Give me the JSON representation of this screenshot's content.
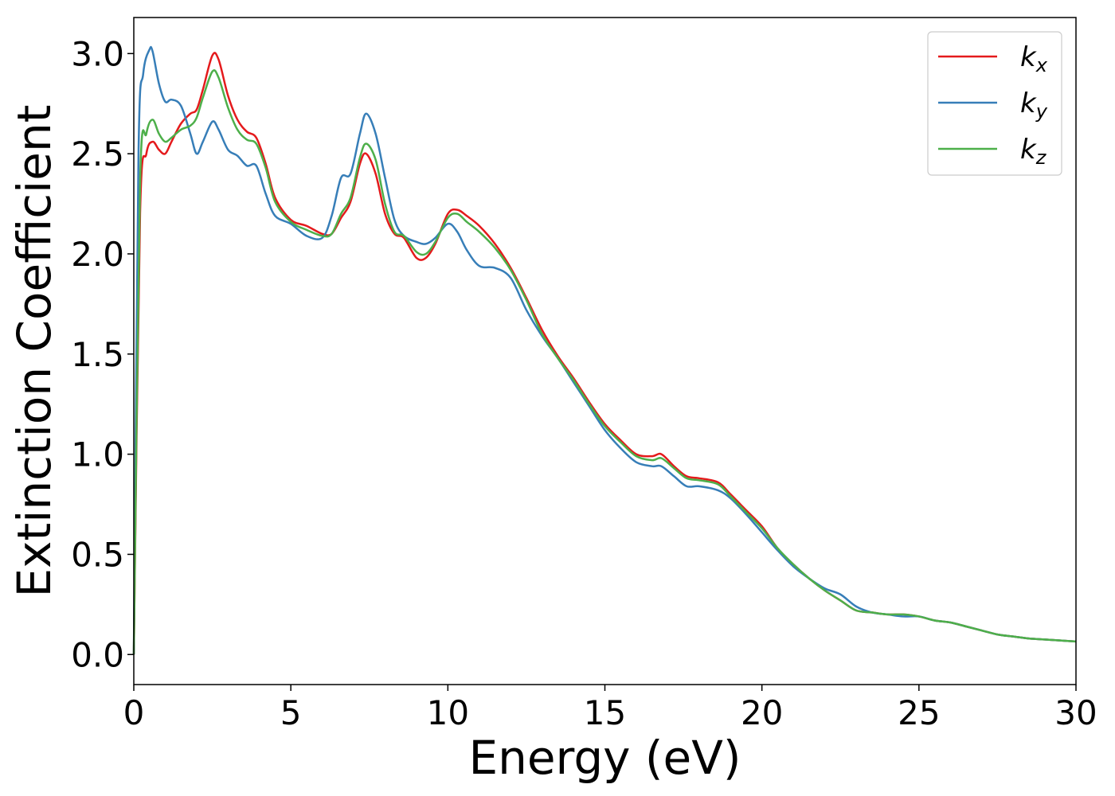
{
  "chart_data": {
    "type": "line",
    "title": "",
    "xlabel": "Energy (eV)",
    "ylabel": "Extinction Coefficient",
    "xlim": [
      0,
      30
    ],
    "ylim": [
      -0.15,
      3.18
    ],
    "xticks": [
      0,
      5,
      10,
      15,
      20,
      25,
      30
    ],
    "xtick_labels": [
      "0",
      "5",
      "10",
      "15",
      "20",
      "25",
      "30"
    ],
    "yticks": [
      0.0,
      0.5,
      1.0,
      1.5,
      2.0,
      2.5,
      3.0
    ],
    "ytick_labels": [
      "0.0",
      "0.5",
      "1.0",
      "1.5",
      "2.0",
      "2.5",
      "3.0"
    ],
    "grid": false,
    "legend_position": "top-right",
    "series": [
      {
        "name": "k",
        "subscript": "x",
        "color": "#e41a1c",
        "x": [
          0,
          0.2,
          0.4,
          0.6,
          0.8,
          1.0,
          1.2,
          1.5,
          1.8,
          2.0,
          2.2,
          2.5,
          2.7,
          3.0,
          3.3,
          3.6,
          3.9,
          4.2,
          4.5,
          5.0,
          5.5,
          6.0,
          6.3,
          6.6,
          6.9,
          7.2,
          7.4,
          7.7,
          8.0,
          8.3,
          8.6,
          9.0,
          9.3,
          9.6,
          10.0,
          10.3,
          10.6,
          11.0,
          11.5,
          12.0,
          12.5,
          13.0,
          13.5,
          14.0,
          14.5,
          15.0,
          15.5,
          16.0,
          16.5,
          16.8,
          17.2,
          17.6,
          18.0,
          18.6,
          19.0,
          19.5,
          20.0,
          20.5,
          21.0,
          21.5,
          22.0,
          22.5,
          23.0,
          23.5,
          24.0,
          24.5,
          25.0,
          25.5,
          26.0,
          26.5,
          27.0,
          27.5,
          28.0,
          28.5,
          29.0,
          29.5,
          30.0
        ],
        "y": [
          0.0,
          2.2,
          2.5,
          2.56,
          2.52,
          2.5,
          2.56,
          2.65,
          2.7,
          2.72,
          2.82,
          2.99,
          2.97,
          2.79,
          2.67,
          2.61,
          2.58,
          2.45,
          2.28,
          2.17,
          2.14,
          2.1,
          2.1,
          2.18,
          2.26,
          2.45,
          2.5,
          2.4,
          2.2,
          2.1,
          2.08,
          1.98,
          1.98,
          2.05,
          2.2,
          2.22,
          2.19,
          2.14,
          2.05,
          1.93,
          1.78,
          1.62,
          1.49,
          1.38,
          1.26,
          1.15,
          1.07,
          1.0,
          0.99,
          1.0,
          0.94,
          0.89,
          0.88,
          0.86,
          0.8,
          0.72,
          0.64,
          0.53,
          0.45,
          0.38,
          0.32,
          0.27,
          0.22,
          0.21,
          0.2,
          0.2,
          0.19,
          0.17,
          0.16,
          0.14,
          0.12,
          0.1,
          0.09,
          0.08,
          0.075,
          0.07,
          0.065
        ]
      },
      {
        "name": "k",
        "subscript": "y",
        "color": "#377eb8",
        "x": [
          0,
          0.15,
          0.3,
          0.5,
          0.6,
          0.8,
          1.0,
          1.2,
          1.5,
          1.8,
          2.0,
          2.2,
          2.5,
          2.7,
          3.0,
          3.3,
          3.6,
          3.9,
          4.2,
          4.5,
          5.0,
          5.5,
          6.0,
          6.3,
          6.6,
          6.9,
          7.2,
          7.4,
          7.7,
          8.0,
          8.3,
          8.6,
          9.0,
          9.3,
          9.6,
          10.0,
          10.3,
          10.6,
          11.0,
          11.5,
          12.0,
          12.5,
          13.0,
          13.5,
          14.0,
          14.5,
          15.0,
          15.5,
          16.0,
          16.5,
          16.8,
          17.2,
          17.6,
          18.0,
          18.6,
          19.0,
          19.5,
          20.0,
          20.5,
          21.0,
          21.5,
          22.0,
          22.5,
          23.0,
          23.5,
          24.0,
          24.5,
          25.0,
          25.5,
          26.0,
          26.5,
          27.0,
          27.5,
          28.0,
          28.5,
          29.0,
          29.5,
          30.0
        ],
        "y": [
          0.0,
          2.5,
          2.9,
          3.02,
          3.01,
          2.85,
          2.76,
          2.77,
          2.74,
          2.6,
          2.5,
          2.56,
          2.66,
          2.62,
          2.52,
          2.49,
          2.44,
          2.44,
          2.3,
          2.19,
          2.15,
          2.09,
          2.08,
          2.19,
          2.38,
          2.4,
          2.6,
          2.7,
          2.6,
          2.38,
          2.17,
          2.09,
          2.06,
          2.05,
          2.08,
          2.15,
          2.11,
          2.02,
          1.94,
          1.93,
          1.88,
          1.72,
          1.59,
          1.48,
          1.36,
          1.24,
          1.12,
          1.03,
          0.96,
          0.94,
          0.94,
          0.89,
          0.84,
          0.84,
          0.82,
          0.78,
          0.7,
          0.61,
          0.52,
          0.44,
          0.38,
          0.33,
          0.3,
          0.24,
          0.21,
          0.2,
          0.19,
          0.19,
          0.17,
          0.16,
          0.14,
          0.12,
          0.1,
          0.09,
          0.08,
          0.075,
          0.07,
          0.065
        ]
      },
      {
        "name": "k",
        "subscript": "z",
        "color": "#4daf4a",
        "x": [
          0,
          0.2,
          0.4,
          0.6,
          0.8,
          1.0,
          1.2,
          1.5,
          1.8,
          2.0,
          2.2,
          2.5,
          2.7,
          3.0,
          3.3,
          3.6,
          3.9,
          4.2,
          4.5,
          5.0,
          5.5,
          6.0,
          6.3,
          6.6,
          6.9,
          7.2,
          7.4,
          7.7,
          8.0,
          8.3,
          8.6,
          9.0,
          9.3,
          9.6,
          10.0,
          10.3,
          10.6,
          11.0,
          11.5,
          12.0,
          12.5,
          13.0,
          13.5,
          14.0,
          14.5,
          15.0,
          15.5,
          16.0,
          16.5,
          16.8,
          17.2,
          17.6,
          18.0,
          18.6,
          19.0,
          19.5,
          20.0,
          20.5,
          21.0,
          21.5,
          22.0,
          22.5,
          23.0,
          23.5,
          24.0,
          24.5,
          25.0,
          25.5,
          26.0,
          26.5,
          27.0,
          27.5,
          28.0,
          28.5,
          29.0,
          29.5,
          30.0
        ],
        "y": [
          0.0,
          2.35,
          2.6,
          2.67,
          2.6,
          2.56,
          2.58,
          2.62,
          2.64,
          2.68,
          2.78,
          2.91,
          2.88,
          2.73,
          2.62,
          2.57,
          2.55,
          2.43,
          2.26,
          2.16,
          2.12,
          2.09,
          2.1,
          2.2,
          2.28,
          2.48,
          2.55,
          2.47,
          2.25,
          2.11,
          2.09,
          2.01,
          2.0,
          2.06,
          2.18,
          2.2,
          2.16,
          2.11,
          2.03,
          1.92,
          1.77,
          1.6,
          1.48,
          1.37,
          1.25,
          1.14,
          1.06,
          0.99,
          0.97,
          0.98,
          0.93,
          0.88,
          0.87,
          0.85,
          0.79,
          0.71,
          0.63,
          0.53,
          0.45,
          0.38,
          0.32,
          0.27,
          0.22,
          0.21,
          0.2,
          0.2,
          0.19,
          0.17,
          0.16,
          0.14,
          0.12,
          0.1,
          0.09,
          0.08,
          0.075,
          0.07,
          0.065
        ]
      }
    ]
  }
}
